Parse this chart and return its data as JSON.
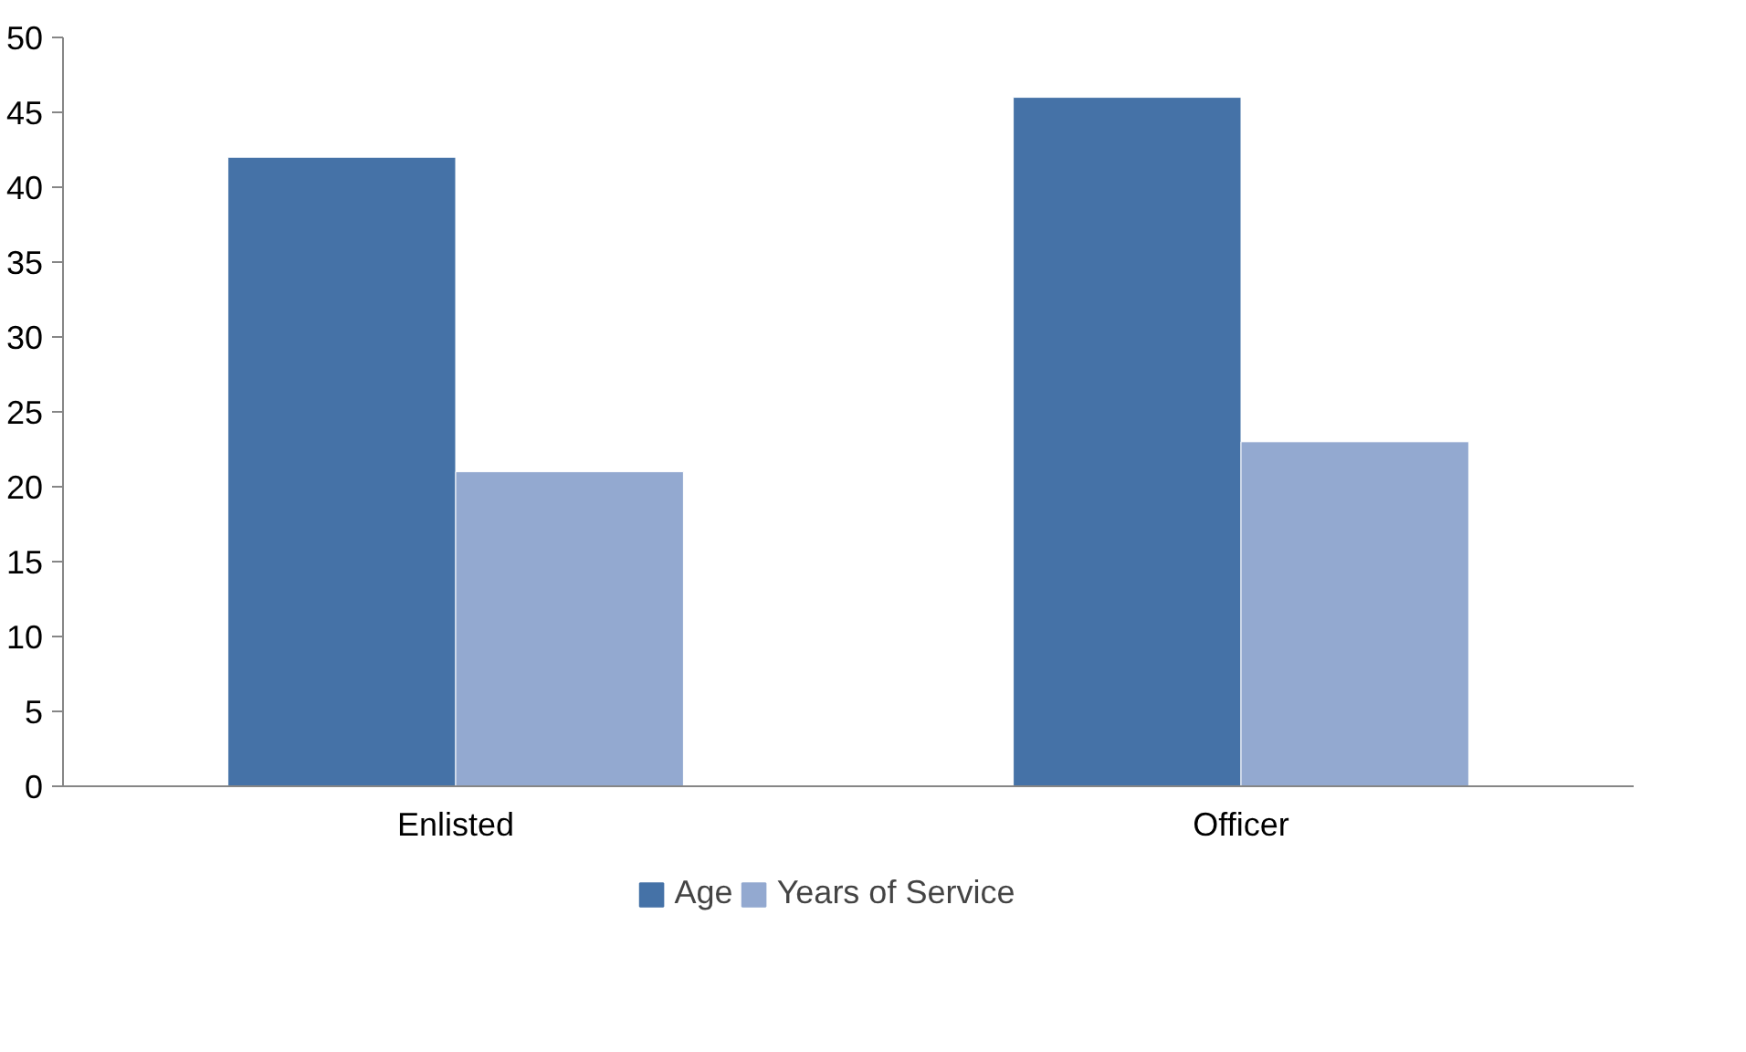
{
  "chart_data": {
    "type": "bar",
    "categories": [
      "Enlisted",
      "Officer"
    ],
    "series": [
      {
        "name": "Age",
        "color": "#4572a7",
        "values": [
          42,
          46
        ]
      },
      {
        "name": "Years of Service",
        "color": "#93a9d0",
        "values": [
          21,
          23
        ]
      }
    ],
    "ylim": [
      0,
      50
    ],
    "yticks": [
      0,
      5,
      10,
      15,
      20,
      25,
      30,
      35,
      40,
      45,
      50
    ],
    "grid": false,
    "legend": "bottom"
  }
}
